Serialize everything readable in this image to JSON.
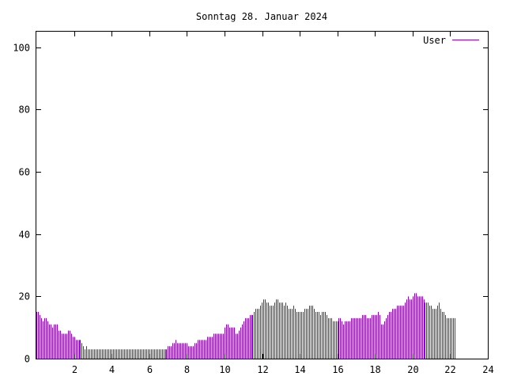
{
  "chart_data": {
    "type": "bar",
    "title": "Sonntag 28. Januar 2024",
    "xlabel": "",
    "ylabel": "",
    "xlim": [
      0,
      24
    ],
    "ylim": [
      0,
      105
    ],
    "xticks": [
      2,
      4,
      6,
      8,
      10,
      12,
      14,
      16,
      18,
      20,
      22,
      24
    ],
    "yticks": [
      0,
      20,
      40,
      60,
      80,
      100
    ],
    "grid": false,
    "legend_position": "top-right",
    "series": [
      {
        "name": "User",
        "color": "#9400d3",
        "interval_hours": 0.0833,
        "values": [
          15,
          15,
          14,
          13,
          12,
          13,
          13,
          12,
          11,
          11,
          10,
          11,
          11,
          11,
          9,
          9,
          8,
          8,
          8,
          8,
          9,
          9,
          8,
          7,
          7,
          6,
          6,
          6,
          6,
          5,
          4,
          3,
          4,
          3,
          3,
          3,
          3,
          3,
          3,
          3,
          3,
          3,
          3,
          3,
          3,
          3,
          3,
          3,
          3,
          3,
          3,
          3,
          3,
          3,
          3,
          3,
          3,
          3,
          3,
          3,
          3,
          3,
          3,
          3,
          3,
          3,
          3,
          3,
          3,
          3,
          3,
          3,
          3,
          3,
          3,
          3,
          3,
          3,
          3,
          3,
          3,
          3,
          3,
          3,
          4,
          4,
          4,
          5,
          5,
          6,
          5,
          5,
          5,
          5,
          5,
          5,
          5,
          4,
          4,
          4,
          4,
          5,
          5,
          6,
          6,
          6,
          6,
          6,
          6,
          7,
          7,
          7,
          7,
          8,
          8,
          8,
          8,
          8,
          8,
          8,
          10,
          11,
          11,
          10,
          10,
          10,
          10,
          8,
          8,
          9,
          10,
          11,
          12,
          13,
          13,
          13,
          14,
          14,
          14,
          15,
          16,
          16,
          16,
          17,
          18,
          19,
          19,
          18,
          18,
          17,
          17,
          17,
          18,
          19,
          19,
          18,
          18,
          18,
          17,
          18,
          17,
          16,
          16,
          16,
          17,
          16,
          15,
          15,
          15,
          15,
          15,
          16,
          16,
          16,
          17,
          17,
          17,
          16,
          15,
          15,
          15,
          14,
          15,
          15,
          15,
          14,
          13,
          13,
          13,
          12,
          12,
          12,
          12,
          13,
          13,
          12,
          11,
          12,
          12,
          12,
          12,
          13,
          13,
          13,
          13,
          13,
          13,
          13,
          14,
          14,
          14,
          13,
          13,
          13,
          14,
          14,
          14,
          14,
          15,
          14,
          11,
          11,
          12,
          13,
          14,
          15,
          15,
          16,
          16,
          16,
          17,
          17,
          17,
          17,
          17,
          18,
          19,
          20,
          19,
          19,
          20,
          21,
          21,
          20,
          20,
          20,
          20,
          19,
          18,
          18,
          18,
          17,
          17,
          16,
          16,
          16,
          17,
          18,
          16,
          15,
          15,
          14,
          13,
          13,
          13,
          13,
          13,
          13
        ]
      }
    ]
  }
}
